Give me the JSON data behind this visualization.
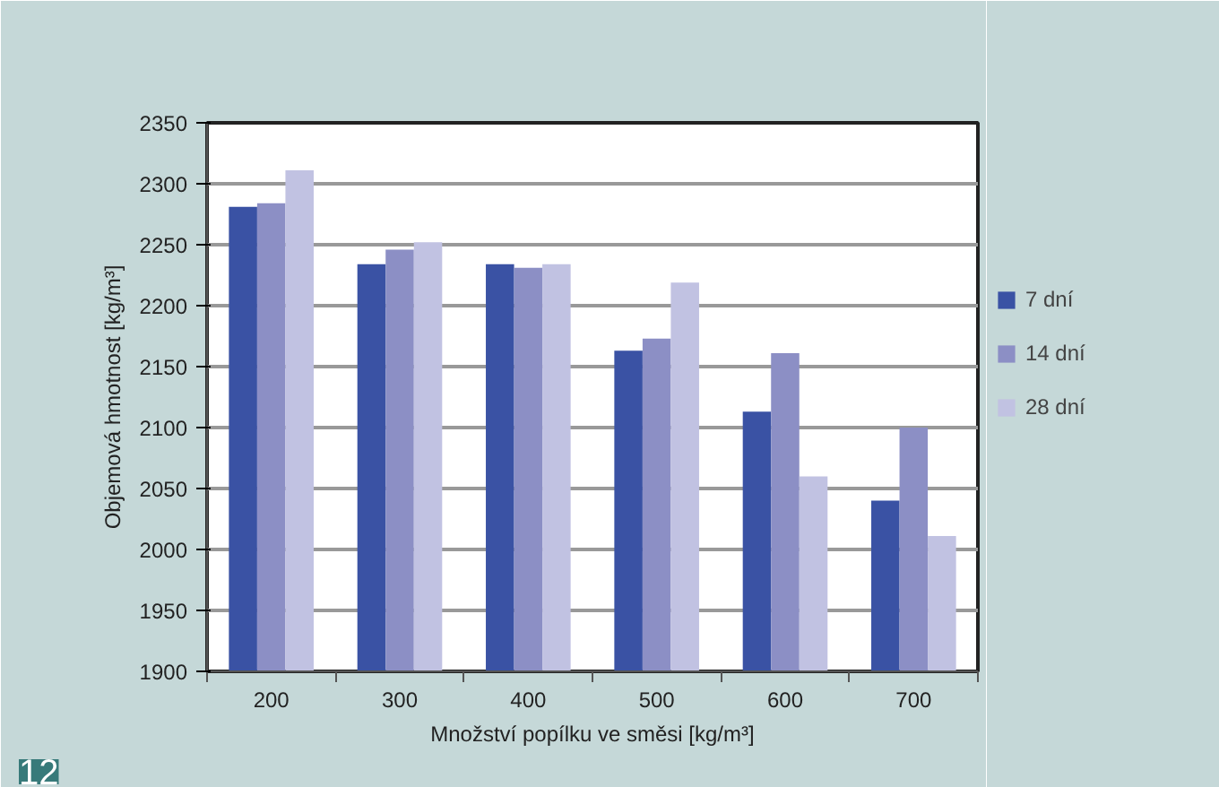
{
  "chart_data": {
    "type": "bar",
    "xlabel": "Množství popílku ve směsi [kg/m³]",
    "ylabel": "Objemová hmotnost [kg/m³]",
    "categories": [
      "200",
      "300",
      "400",
      "500",
      "600",
      "700"
    ],
    "series": [
      {
        "name": "7 dní",
        "color": "#3a52a4",
        "values": [
          2281,
          2234,
          2234,
          2163,
          2113,
          2040
        ]
      },
      {
        "name": "14 dní",
        "color": "#8c8fc5",
        "values": [
          2284,
          2246,
          2231,
          2173,
          2161,
          2100
        ]
      },
      {
        "name": "28 dní",
        "color": "#c1c2e2",
        "values": [
          2311,
          2252,
          2234,
          2219,
          2060,
          2011
        ]
      }
    ],
    "ylim": [
      1900,
      2350
    ],
    "yticks": [
      1900,
      1950,
      2000,
      2050,
      2100,
      2150,
      2200,
      2250,
      2300,
      2350
    ],
    "grid": "y",
    "legend": "right",
    "annotations": [
      "12"
    ]
  }
}
